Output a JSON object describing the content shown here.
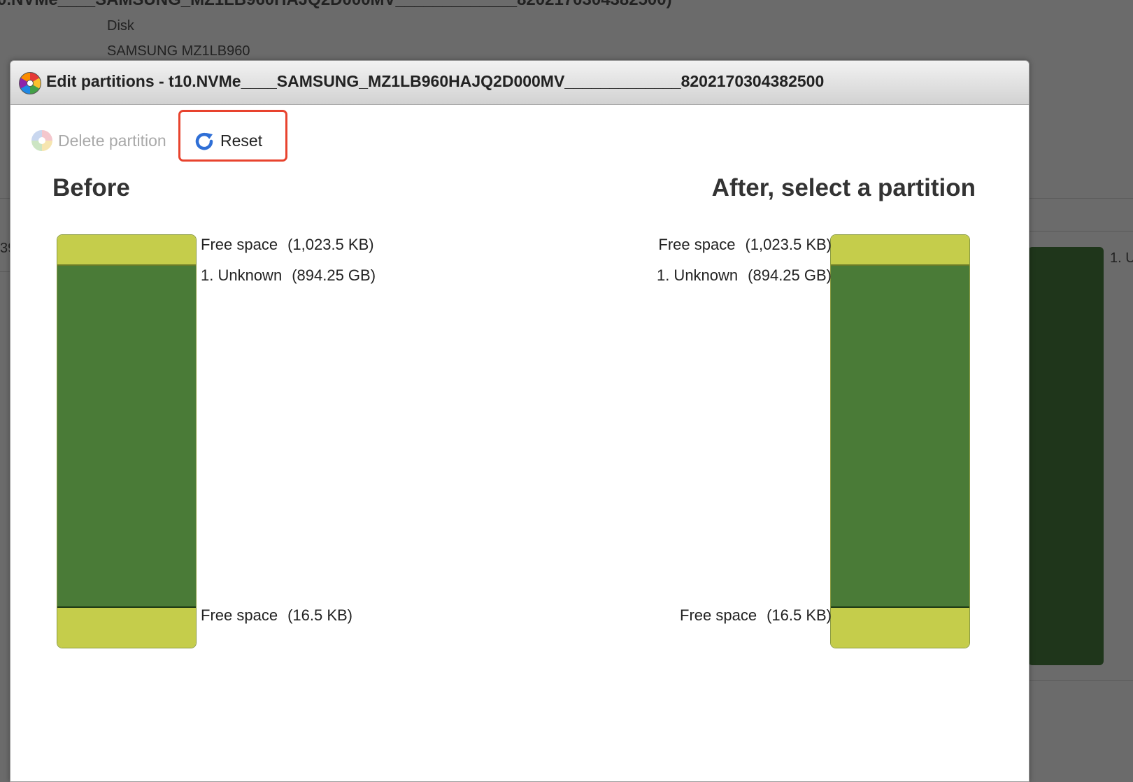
{
  "background": {
    "title_fragment": "0.NVMe____SAMSUNG_MZ1LB960HAJQ2D000MV_____________8202170304382500)",
    "disk_label": "Disk",
    "disk_model": "SAMSUNG MZ1LB960",
    "left_fragment": "39",
    "right_label_fragment": "1. U"
  },
  "dialog": {
    "title": "Edit partitions - t10.NVMe____SAMSUNG_MZ1LB960HAJQ2D000MV_____________8202170304382500",
    "toolbar": {
      "delete_label": "Delete partition",
      "delete_enabled": false,
      "reset_label": "Reset"
    },
    "before_heading": "Before",
    "after_heading": "After, select a partition",
    "partitions": [
      {
        "name": "Free space",
        "size": "(1,023.5 KB)",
        "type": "free",
        "color": "#c5cd4b"
      },
      {
        "name": "1. Unknown",
        "size": "(894.25 GB)",
        "type": "partition",
        "color": "#4a7b37"
      },
      {
        "name": "Free space",
        "size": "(16.5 KB)",
        "type": "free",
        "color": "#c5cd4b"
      }
    ]
  },
  "colors": {
    "highlight": "#e8432e",
    "free_space": "#c5cd4b",
    "partition": "#4a7b37",
    "overlay": "#6b6b6b"
  }
}
